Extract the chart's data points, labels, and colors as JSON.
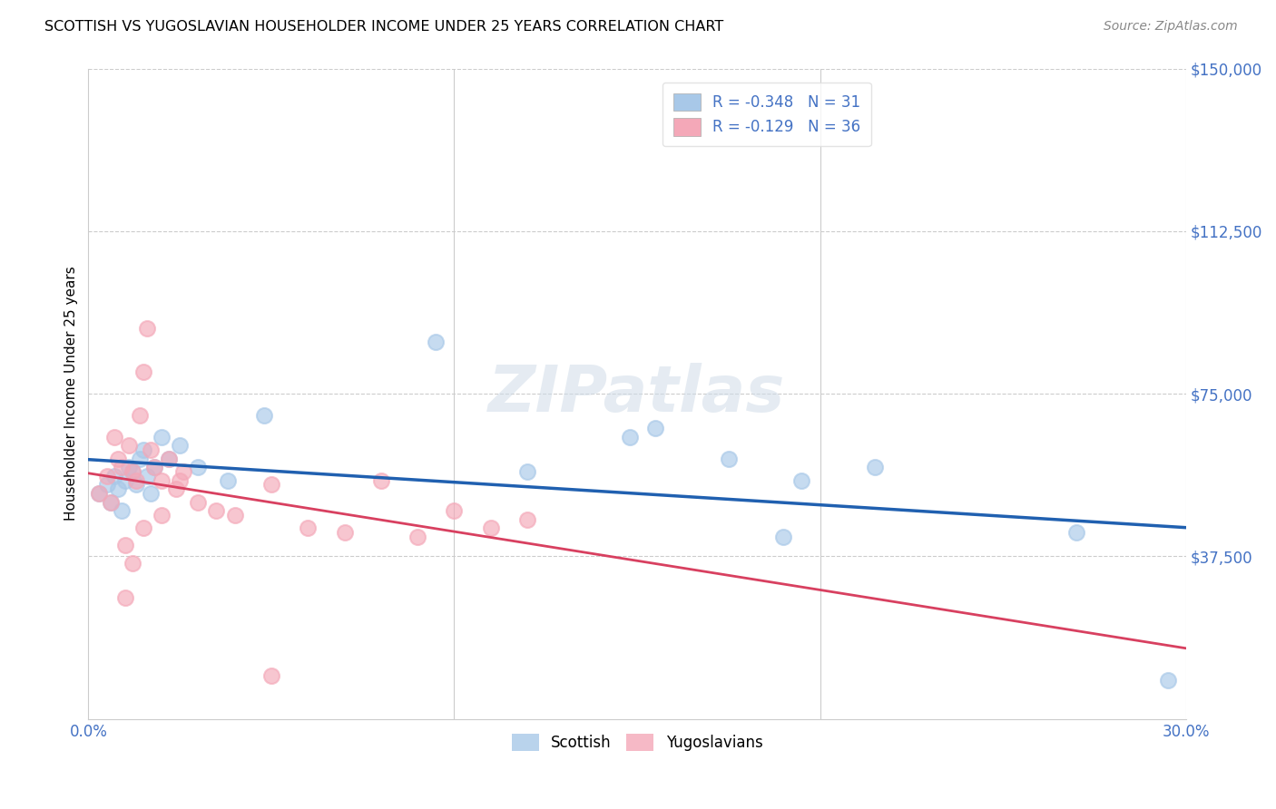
{
  "title": "SCOTTISH VS YUGOSLAVIAN HOUSEHOLDER INCOME UNDER 25 YEARS CORRELATION CHART",
  "source": "Source: ZipAtlas.com",
  "ylabel": "Householder Income Under 25 years",
  "xlim": [
    0.0,
    0.3
  ],
  "ylim": [
    0,
    150000
  ],
  "yticks": [
    0,
    37500,
    75000,
    112500,
    150000
  ],
  "ytick_labels": [
    "",
    "$37,500",
    "$75,000",
    "$112,500",
    "$150,000"
  ],
  "xticks": [
    0.0,
    0.05,
    0.1,
    0.15,
    0.2,
    0.25,
    0.3
  ],
  "xtick_labels": [
    "0.0%",
    "",
    "",
    "",
    "",
    "",
    "30.0%"
  ],
  "watermark": "ZIPatlas",
  "legend_top_labels": [
    "R = -0.348   N = 31",
    "R = -0.129   N = 36"
  ],
  "legend_bottom": [
    "Scottish",
    "Yugoslavians"
  ],
  "scottish_color": "#a8c8e8",
  "yugoslav_color": "#f4a8b8",
  "trendline_scottish_color": "#2060b0",
  "trendline_yugoslav_color": "#d84060",
  "scottish_x": [
    0.003,
    0.005,
    0.006,
    0.007,
    0.008,
    0.009,
    0.01,
    0.011,
    0.012,
    0.013,
    0.014,
    0.015,
    0.016,
    0.017,
    0.018,
    0.02,
    0.022,
    0.025,
    0.03,
    0.038,
    0.048,
    0.095,
    0.12,
    0.148,
    0.155,
    0.175,
    0.195,
    0.215,
    0.19,
    0.27,
    0.295
  ],
  "scottish_y": [
    52000,
    54000,
    50000,
    56000,
    53000,
    48000,
    55000,
    58000,
    57000,
    54000,
    60000,
    62000,
    56000,
    52000,
    58000,
    65000,
    60000,
    63000,
    58000,
    55000,
    70000,
    87000,
    57000,
    65000,
    67000,
    60000,
    55000,
    58000,
    42000,
    43000,
    9000
  ],
  "yugoslav_x": [
    0.003,
    0.005,
    0.006,
    0.007,
    0.008,
    0.009,
    0.01,
    0.011,
    0.012,
    0.013,
    0.014,
    0.015,
    0.016,
    0.017,
    0.018,
    0.02,
    0.022,
    0.024,
    0.026,
    0.03,
    0.035,
    0.04,
    0.05,
    0.06,
    0.07,
    0.08,
    0.09,
    0.1,
    0.11,
    0.12,
    0.01,
    0.012,
    0.015,
    0.02,
    0.025,
    0.05
  ],
  "yugoslav_y": [
    52000,
    56000,
    50000,
    65000,
    60000,
    58000,
    28000,
    63000,
    57000,
    55000,
    70000,
    80000,
    90000,
    62000,
    58000,
    55000,
    60000,
    53000,
    57000,
    50000,
    48000,
    47000,
    54000,
    44000,
    43000,
    55000,
    42000,
    48000,
    44000,
    46000,
    40000,
    36000,
    44000,
    47000,
    55000,
    10000
  ],
  "background_color": "#ffffff",
  "grid_color": "#dddddd"
}
